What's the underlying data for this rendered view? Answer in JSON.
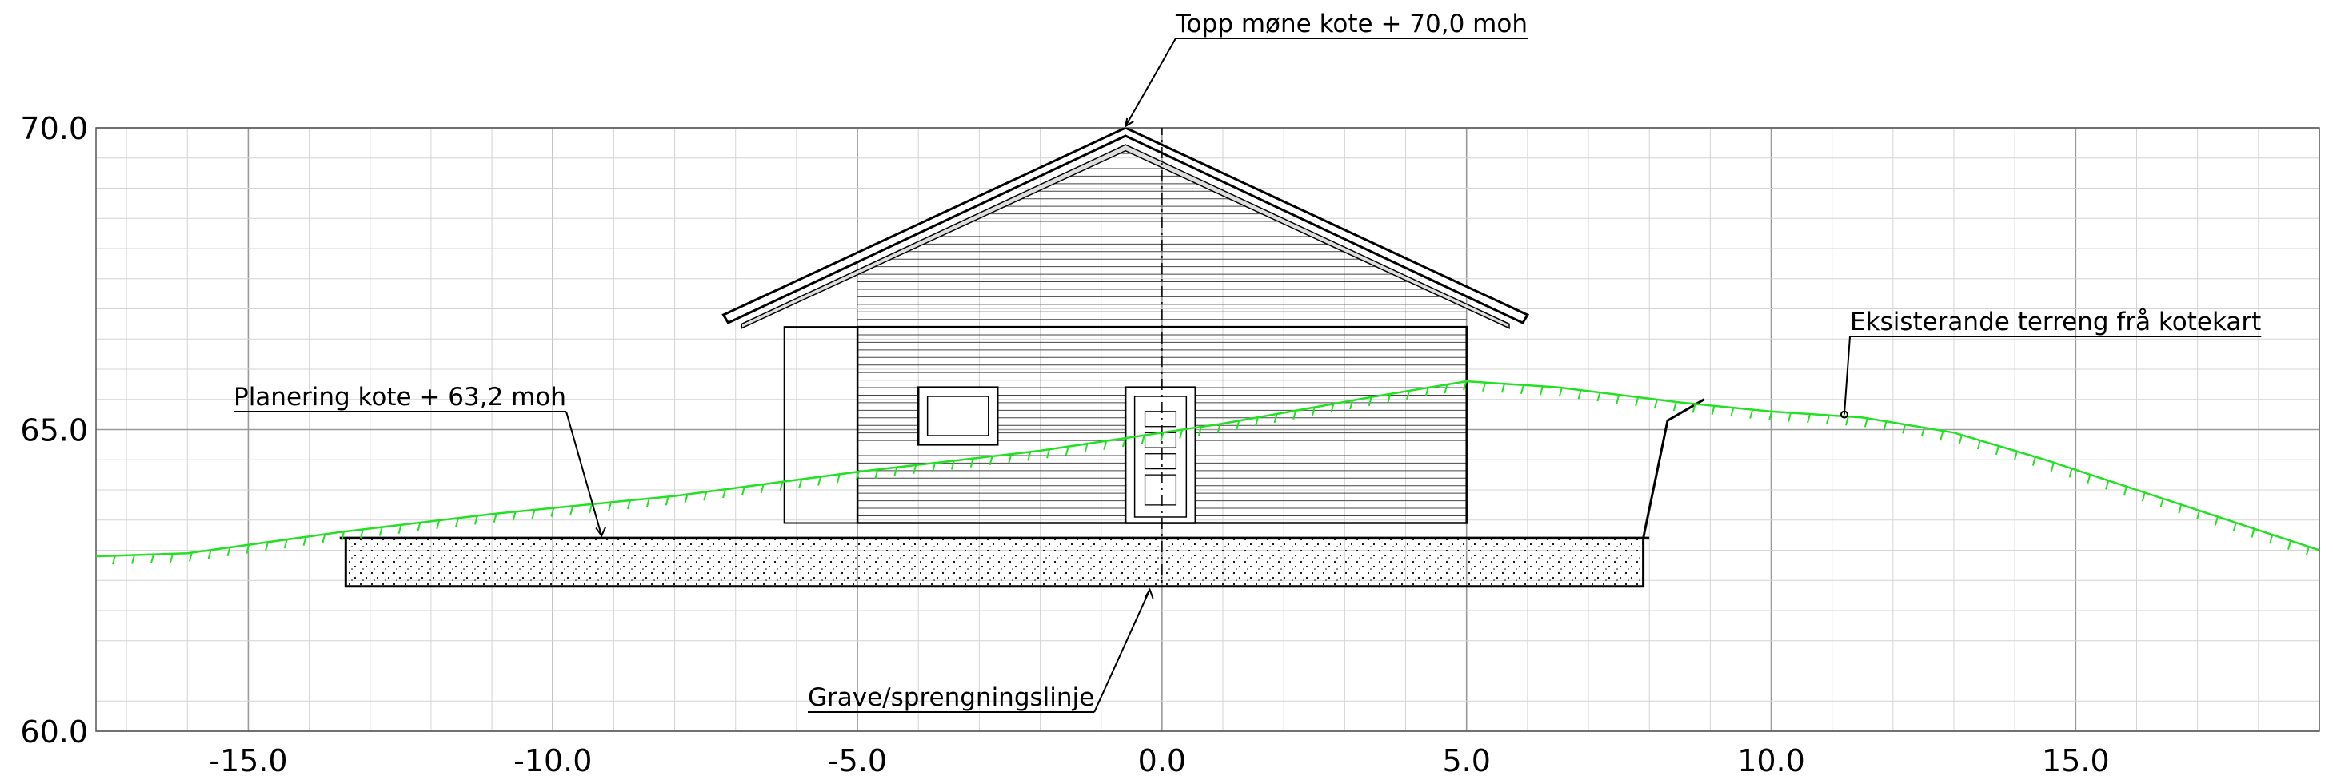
{
  "drawing": {
    "x_ticks": [
      "-15.0",
      "-10.0",
      "-5.0",
      "0.0",
      "5.0",
      "10.0",
      "15.0"
    ],
    "y_ticks": [
      "70.0",
      "65.0",
      "60.0"
    ],
    "annotations": {
      "ridge": "Topp møne kote + 70,0 moh",
      "grading": "Planering kote + 63,2 moh",
      "terrain": "Eksisterande terreng frå kotekart",
      "excavation": "Grave/sprengningslinje"
    }
  },
  "chart_data": {
    "type": "line",
    "title": "",
    "xlabel": "",
    "ylabel": "",
    "xlim": [
      -17.5,
      19.0
    ],
    "ylim": [
      60.0,
      70.0
    ],
    "grid": true,
    "xticks": [
      -15.0,
      -10.0,
      -5.0,
      0.0,
      5.0,
      10.0,
      15.0
    ],
    "yticks": [
      60.0,
      65.0,
      70.0
    ],
    "series": [
      {
        "style": "existing terrain, green hatched",
        "color": "#2ee62e",
        "x": [
          -17.5,
          -16.0,
          -13.5,
          -11.0,
          -8.0,
          -5.0,
          -2.0,
          1.0,
          3.5,
          5.0,
          6.5,
          8.5,
          10.0,
          11.5,
          13.0,
          14.5,
          16.0,
          17.5,
          19.0
        ],
        "y": [
          62.9,
          62.95,
          63.3,
          63.6,
          63.9,
          64.3,
          64.65,
          65.1,
          65.55,
          65.8,
          65.7,
          65.45,
          65.3,
          65.2,
          64.95,
          64.5,
          64.0,
          63.5,
          63.0
        ]
      },
      {
        "style": "graded level",
        "color": "#000000",
        "x": [
          -13.5,
          8.0
        ],
        "y": [
          63.2,
          63.2
        ]
      },
      {
        "style": "excavation line",
        "color": "#000000",
        "x": [
          -13.4,
          -13.4,
          7.9,
          7.9,
          8.3,
          8.9
        ],
        "y": [
          63.2,
          62.4,
          62.4,
          63.2,
          65.15,
          65.5
        ]
      },
      {
        "style": "roof outline",
        "color": "#000000",
        "x": [
          -7.2,
          -0.6,
          6.0
        ],
        "y": [
          66.9,
          70.0,
          66.9
        ]
      }
    ]
  }
}
